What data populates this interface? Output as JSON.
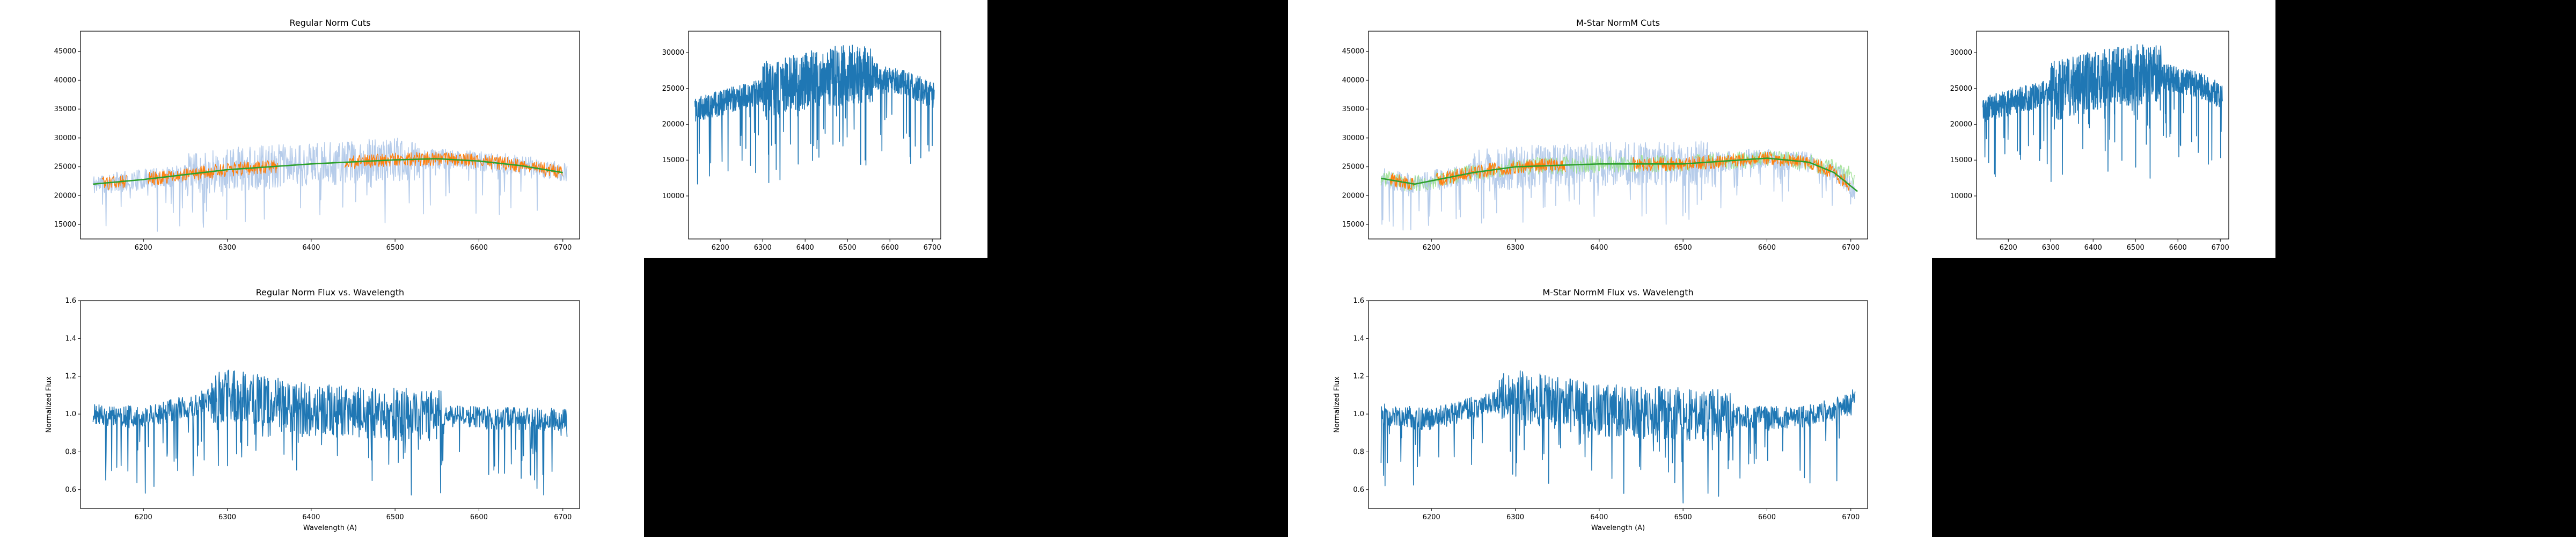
{
  "panels": [
    {
      "id": "regular",
      "cuts": {
        "title": "Regular Norm Cuts",
        "x_ticks": [
          6200,
          6300,
          6400,
          6500,
          6600,
          6700
        ],
        "y_ticks": [
          15000,
          20000,
          25000,
          30000,
          35000,
          40000,
          45000
        ],
        "xlim": [
          6125,
          6720
        ],
        "ylim": [
          12500,
          48500
        ]
      },
      "raw": {
        "x_ticks": [
          6200,
          6300,
          6400,
          6500,
          6600,
          6700
        ],
        "y_ticks": [
          10000,
          15000,
          20000,
          25000,
          30000
        ],
        "xlim": [
          6125,
          6720
        ],
        "ylim": [
          4000,
          33000
        ]
      },
      "norm": {
        "title": "Regular Norm Flux vs. Wavelength",
        "xlabel": "Wavelength (A)",
        "ylabel": "Normalized Flux",
        "x_ticks": [
          6200,
          6300,
          6400,
          6500,
          6600,
          6700
        ],
        "y_ticks": [
          "0.6",
          "0.8",
          "1.0",
          "1.2",
          "1.4",
          "1.6"
        ],
        "xlim": [
          6125,
          6720
        ],
        "ylim": [
          0.5,
          1.6
        ]
      }
    },
    {
      "id": "mstar",
      "cuts": {
        "title": "M-Star NormM Cuts",
        "x_ticks": [
          6200,
          6300,
          6400,
          6500,
          6600,
          6700
        ],
        "y_ticks": [
          15000,
          20000,
          25000,
          30000,
          35000,
          40000,
          45000
        ],
        "xlim": [
          6125,
          6720
        ],
        "ylim": [
          12500,
          48500
        ]
      },
      "raw": {
        "x_ticks": [
          6200,
          6300,
          6400,
          6500,
          6600,
          6700
        ],
        "y_ticks": [
          10000,
          15000,
          20000,
          25000,
          30000
        ],
        "xlim": [
          6125,
          6720
        ],
        "ylim": [
          4000,
          33000
        ]
      },
      "norm": {
        "title": "M-Star NormM Flux vs. Wavelength",
        "xlabel": "Wavelength (A)",
        "ylabel": "Normalized Flux",
        "x_ticks": [
          6200,
          6300,
          6400,
          6500,
          6600,
          6700
        ],
        "y_ticks": [
          "0.6",
          "0.8",
          "1.0",
          "1.2",
          "1.4",
          "1.6"
        ],
        "xlim": [
          6125,
          6720
        ],
        "ylim": [
          0.5,
          1.6
        ]
      }
    }
  ],
  "colors": {
    "blue": "#1f77b4",
    "light_blue": "#aec7e8",
    "orange": "#ff7f0e",
    "green": "#2ca02c",
    "light_green": "#98df8a"
  },
  "chart_data": [
    {
      "type": "line",
      "title": "Regular Norm Cuts",
      "xlabel": "",
      "ylabel": "",
      "xlim": [
        6125,
        6720
      ],
      "ylim": [
        12500,
        48500
      ],
      "series": [
        {
          "role": "spectrum",
          "color": "#aec7e8"
        },
        {
          "role": "cut",
          "color": "#ff7f0e"
        },
        {
          "role": "fit",
          "color": "#2ca02c",
          "x": [
            6140,
            6200,
            6300,
            6400,
            6500,
            6550,
            6600,
            6650,
            6700
          ],
          "values": [
            22000,
            22800,
            24500,
            25500,
            26200,
            26400,
            26000,
            25200,
            24000
          ]
        }
      ]
    },
    {
      "type": "line",
      "title": "",
      "xlabel": "",
      "ylabel": "",
      "xlim": [
        6125,
        6720
      ],
      "ylim": [
        4000,
        33000
      ],
      "series": [
        {
          "role": "spectrum",
          "color": "#1f77b4",
          "x": [
            6140,
            6200,
            6300,
            6400,
            6450,
            6500,
            6550,
            6600,
            6650,
            6700
          ],
          "values": [
            22000,
            23000,
            24500,
            26000,
            26500,
            27000,
            27000,
            26200,
            25500,
            24000
          ]
        }
      ]
    },
    {
      "type": "line",
      "title": "Regular Norm Flux vs. Wavelength",
      "xlabel": "Wavelength (A)",
      "ylabel": "Normalized Flux",
      "xlim": [
        6125,
        6720
      ],
      "ylim": [
        0.5,
        1.6
      ],
      "series": [
        {
          "role": "normalized",
          "color": "#1f77b4",
          "x": [
            6140,
            6200,
            6300,
            6400,
            6500,
            6600,
            6700
          ],
          "values": [
            1.0,
            0.98,
            1.1,
            1.02,
            1.0,
            0.98,
            0.97
          ]
        }
      ]
    },
    {
      "type": "line",
      "title": "M-Star NormM Cuts",
      "xlabel": "",
      "ylabel": "",
      "xlim": [
        6125,
        6720
      ],
      "ylim": [
        12500,
        48500
      ],
      "series": [
        {
          "role": "spectrum",
          "color": "#aec7e8"
        },
        {
          "role": "cut",
          "color": "#ff7f0e"
        },
        {
          "role": "fit",
          "color": "#2ca02c",
          "x": [
            6140,
            6180,
            6250,
            6300,
            6400,
            6500,
            6550,
            6600,
            6650,
            6680,
            6710
          ],
          "values": [
            23000,
            22000,
            24000,
            25000,
            25500,
            25500,
            26000,
            26500,
            25800,
            24000,
            20500
          ]
        }
      ]
    },
    {
      "type": "line",
      "title": "",
      "xlabel": "",
      "ylabel": "",
      "xlim": [
        6125,
        6720
      ],
      "ylim": [
        4000,
        33000
      ],
      "series": [
        {
          "role": "spectrum",
          "color": "#1f77b4",
          "x": [
            6140,
            6200,
            6300,
            6400,
            6450,
            6500,
            6550,
            6600,
            6650,
            6700
          ],
          "values": [
            22000,
            23000,
            24500,
            26000,
            26500,
            27000,
            27000,
            26200,
            25500,
            24000
          ]
        }
      ]
    },
    {
      "type": "line",
      "title": "M-Star NormM Flux vs. Wavelength",
      "xlabel": "Wavelength (A)",
      "ylabel": "Normalized Flux",
      "xlim": [
        6125,
        6720
      ],
      "ylim": [
        0.5,
        1.6
      ],
      "series": [
        {
          "role": "normalized",
          "color": "#1f77b4",
          "x": [
            6140,
            6200,
            6300,
            6400,
            6500,
            6600,
            6650,
            6700,
            6710
          ],
          "values": [
            1.0,
            0.97,
            1.1,
            1.02,
            1.0,
            0.98,
            0.99,
            1.05,
            1.15
          ]
        }
      ]
    }
  ]
}
